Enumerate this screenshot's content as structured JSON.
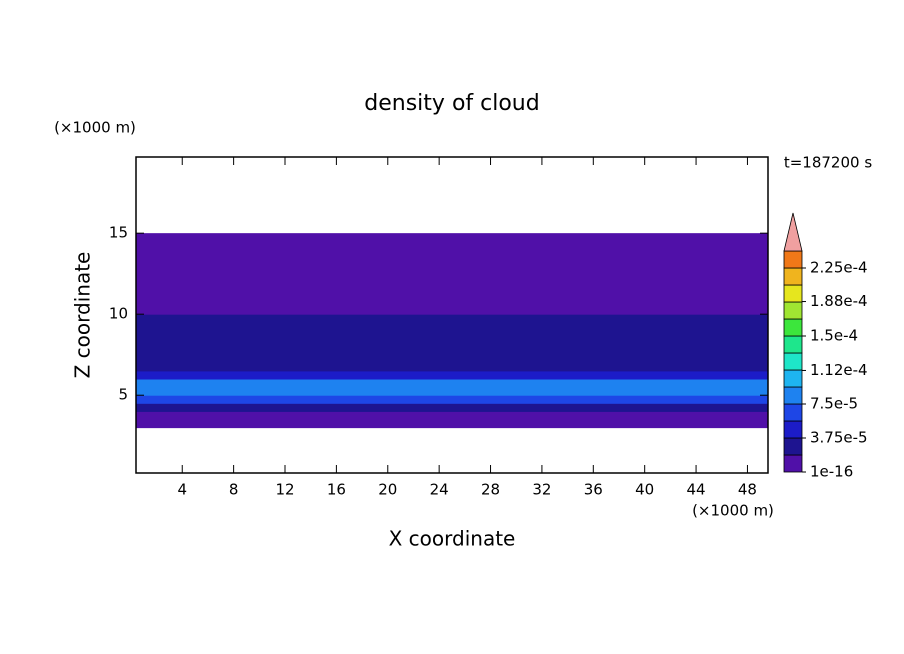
{
  "chart_data": {
    "type": "contour",
    "title": "density of cloud",
    "x_label": "X coordinate",
    "y_label": "Z coordinate",
    "x_unit": "(×1000 m)",
    "y_unit": "(×1000 m)",
    "time_label": "t=187200 s",
    "xlim": [
      0.4,
      49.6
    ],
    "ylim": [
      0.2,
      19.7
    ],
    "xticks": [
      4,
      8,
      12,
      16,
      20,
      24,
      28,
      32,
      36,
      40,
      44,
      48
    ],
    "yticks": [
      5,
      10,
      15
    ],
    "profile": {
      "z": [
        3.25,
        3.75,
        4.25,
        4.75,
        5.25,
        5.75,
        6.25,
        6.75,
        7.25,
        7.75,
        8.25,
        8.75,
        9.25,
        9.75,
        10.25,
        10.75,
        11.25,
        11.75,
        12.25,
        12.75,
        13.25,
        13.75,
        14.25,
        14.75
      ],
      "values": [
        1e-05,
        1e-05,
        3e-05,
        6e-05,
        9e-05,
        8e-05,
        5e-05,
        3e-05,
        2.5e-05,
        2e-05,
        2e-05,
        2e-05,
        2e-05,
        2e-05,
        5e-06,
        5e-06,
        5e-06,
        5e-06,
        5e-06,
        5e-06,
        5e-06,
        5e-06,
        5e-06,
        5e-06
      ]
    },
    "colors": [
      "#5010a8",
      "#1e1490",
      "#1c1cc8",
      "#1e46e6",
      "#1e82f0",
      "#1eb4f0",
      "#1ee6c8",
      "#1ee68c",
      "#3ce63c",
      "#a0e632",
      "#e6e61e",
      "#f0b41e",
      "#f07818"
    ],
    "overflow_color": "#f0a0a0",
    "colorbar_ticks": [
      {
        "value": 1e-16,
        "label": "1e-16"
      },
      {
        "value": 3.75e-05,
        "label": "3.75e-5"
      },
      {
        "value": 7.5e-05,
        "label": "7.5e-5"
      },
      {
        "value": 0.000112,
        "label": "1.12e-4"
      },
      {
        "value": 0.00015,
        "label": "1.5e-4"
      },
      {
        "value": 0.000188,
        "label": "1.88e-4"
      },
      {
        "value": 0.000225,
        "label": "2.25e-4"
      }
    ]
  }
}
